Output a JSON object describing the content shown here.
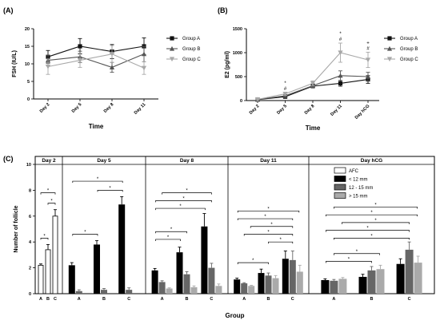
{
  "panel_labels": [
    "(A)",
    "(B)",
    "(C)"
  ],
  "chart_data": [
    {
      "type": "line",
      "panel": "(A)",
      "ylabel": "FSH (IU/L)",
      "xlabel": "Time",
      "categories": [
        "Day 2",
        "Day 5",
        "Day 8",
        "Day 11"
      ],
      "ylim": [
        0,
        20
      ],
      "yticks": [
        "0",
        "5",
        "10",
        "15",
        "20"
      ],
      "legend_placement": "right",
      "series": [
        {
          "name": "Group A",
          "marker": "square",
          "color": "#111111",
          "values": [
            12,
            15,
            13.5,
            15
          ],
          "err": [
            1.8,
            2.2,
            2.0,
            2.4
          ]
        },
        {
          "name": "Group B",
          "marker": "triangle",
          "color": "#555555",
          "values": [
            11,
            12,
            9,
            12.8
          ],
          "err": [
            1.5,
            1.6,
            1.4,
            2.2
          ]
        },
        {
          "name": "Group C",
          "marker": "triangle-down",
          "color": "#a8a8a8",
          "values": [
            9.2,
            11,
            12.8,
            8.8
          ],
          "err": [
            2.2,
            2.0,
            2.4,
            1.8
          ]
        }
      ]
    },
    {
      "type": "line",
      "panel": "(B)",
      "ylabel": "E2 (pg/ml)",
      "xlabel": "Time",
      "categories": [
        "Day 2",
        "Day 5",
        "Day 8",
        "Day 11",
        "Day hCG"
      ],
      "ylim": [
        0,
        1500
      ],
      "yticks": [
        "0",
        "500",
        "1000",
        "1500"
      ],
      "legend_placement": "right",
      "series": [
        {
          "name": "Group A",
          "marker": "square",
          "color": "#111111",
          "values": [
            20,
            80,
            300,
            360,
            440
          ],
          "err": [
            10,
            20,
            30,
            60,
            80
          ]
        },
        {
          "name": "Group B",
          "marker": "triangle",
          "color": "#555555",
          "values": [
            22,
            100,
            310,
            520,
            500
          ],
          "err": [
            10,
            25,
            40,
            100,
            90
          ]
        },
        {
          "name": "Group C",
          "marker": "triangle-down",
          "color": "#a8a8a8",
          "values": [
            25,
            140,
            360,
            1000,
            850
          ],
          "err": [
            10,
            30,
            50,
            200,
            160
          ]
        }
      ],
      "annotations": [
        {
          "category": "Day 5",
          "symbols": [
            "*",
            "#"
          ]
        },
        {
          "category": "Day 11",
          "symbols": [
            "*",
            "#"
          ]
        },
        {
          "category": "Day hCG",
          "symbols": [
            "+",
            "#"
          ]
        }
      ]
    },
    {
      "type": "bar",
      "panel": "(C)",
      "ylabel": "Number of follicle",
      "xlabel": "Group",
      "ylim": [
        0,
        10
      ],
      "yticks": [
        "0",
        "2",
        "4",
        "6",
        "8",
        "10"
      ],
      "legend_placement": "top-right",
      "sections": [
        {
          "title": "Day 2",
          "groups": [
            "A",
            "B",
            "C"
          ]
        },
        {
          "title": "Day 5",
          "groups": [
            "A",
            "B",
            "C"
          ]
        },
        {
          "title": "Day 8",
          "groups": [
            "A",
            "B",
            "C"
          ]
        },
        {
          "title": "Day 11",
          "groups": [
            "A",
            "B",
            "C"
          ]
        },
        {
          "title": "Day hCG",
          "groups": [
            "A",
            "B",
            "C"
          ]
        }
      ],
      "legend": [
        {
          "name": "AFC",
          "color": "#ffffff"
        },
        {
          "name": "< 12 mm",
          "color": "#000000"
        },
        {
          "name": "12 - 15 mm",
          "color": "#666666"
        },
        {
          "name": "> 15 mm",
          "color": "#aaaaaa"
        }
      ],
      "afc": {
        "values": [
          2.2,
          3.4,
          6.0
        ],
        "err": [
          0.1,
          0.4,
          0.5
        ]
      },
      "sized_sections": [
        {
          "lt12": [
            2.2,
            3.8,
            6.9
          ],
          "lt12_err": [
            0.2,
            0.3,
            0.6
          ],
          "mid": [
            0.2,
            0.3,
            0.3
          ],
          "mid_err": [
            0.1,
            0.1,
            0.15
          ],
          "gt15": [
            0,
            0,
            0
          ],
          "gt15_err": [
            0,
            0,
            0
          ]
        },
        {
          "lt12": [
            1.8,
            3.2,
            5.2
          ],
          "lt12_err": [
            0.15,
            0.4,
            1.0
          ],
          "mid": [
            0.9,
            1.5,
            2.0
          ],
          "mid_err": [
            0.1,
            0.2,
            0.35
          ],
          "gt15": [
            0.4,
            0.5,
            0.6
          ],
          "gt15_err": [
            0.05,
            0.1,
            0.15
          ]
        },
        {
          "lt12": [
            1.1,
            1.6,
            2.7
          ],
          "lt12_err": [
            0.1,
            0.3,
            0.6
          ],
          "mid": [
            0.8,
            1.4,
            2.6
          ],
          "mid_err": [
            0.05,
            0.2,
            0.7
          ],
          "gt15": [
            0.6,
            1.2,
            1.7
          ],
          "gt15_err": [
            0.05,
            0.2,
            0.5
          ]
        },
        {
          "lt12": [
            1.05,
            1.3,
            2.3
          ],
          "lt12_err": [
            0.1,
            0.2,
            0.4
          ],
          "mid": [
            1.0,
            1.8,
            3.4
          ],
          "mid_err": [
            0.1,
            0.3,
            0.6
          ],
          "gt15": [
            1.15,
            1.9,
            2.4
          ],
          "gt15_err": [
            0.1,
            0.3,
            0.5
          ]
        }
      ],
      "significance_marker": "*"
    }
  ]
}
